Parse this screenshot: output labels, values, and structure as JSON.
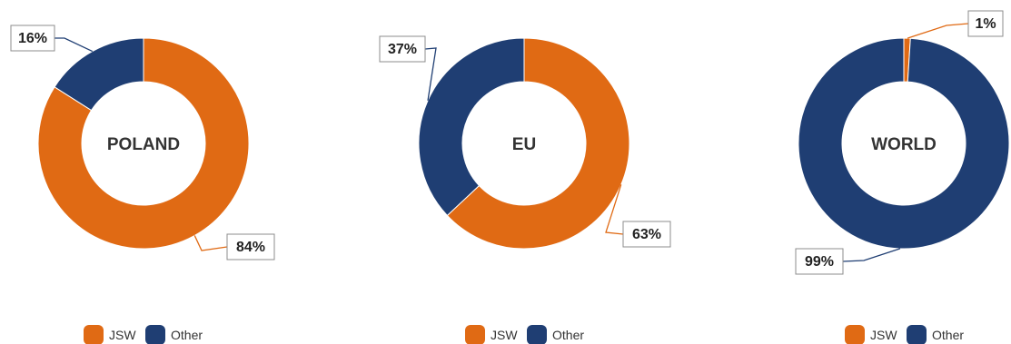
{
  "chart_data": [
    {
      "type": "pie",
      "center_label": "POLAND",
      "labels": [
        "JSW",
        "Other"
      ],
      "values": [
        84,
        16
      ],
      "value_labels": [
        "84%",
        "16%"
      ],
      "colors": [
        "#E06A14",
        "#1F3E73"
      ],
      "legend": [
        "JSW",
        "Other"
      ],
      "legend_position": "bottom"
    },
    {
      "type": "pie",
      "center_label": "EU",
      "labels": [
        "JSW",
        "Other"
      ],
      "values": [
        63,
        37
      ],
      "value_labels": [
        "63%",
        "37%"
      ],
      "colors": [
        "#E06A14",
        "#1F3E73"
      ],
      "legend": [
        "JSW",
        "Other"
      ],
      "legend_position": "bottom"
    },
    {
      "type": "pie",
      "center_label": "WORLD",
      "labels": [
        "JSW",
        "Other"
      ],
      "values": [
        1,
        99
      ],
      "value_labels": [
        "1%",
        "99%"
      ],
      "colors": [
        "#E06A14",
        "#1F3E73"
      ],
      "legend": [
        "JSW",
        "Other"
      ],
      "legend_position": "bottom"
    }
  ]
}
